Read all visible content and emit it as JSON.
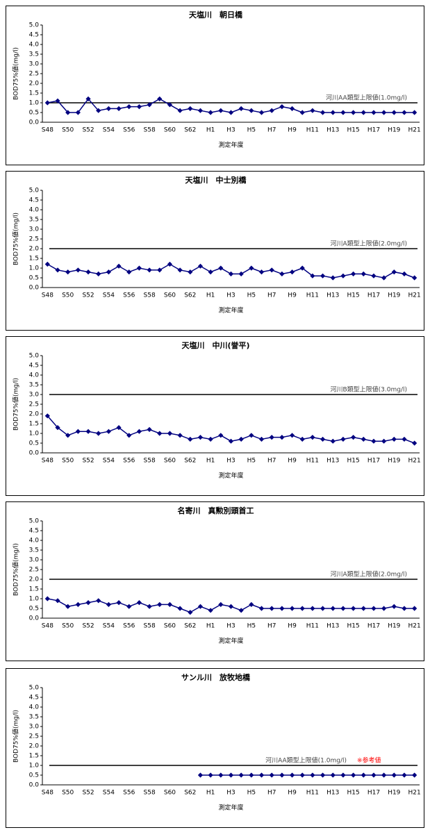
{
  "chart_data": [
    {
      "type": "line",
      "title": "天塩川　朝日橋",
      "y_label": "BOD75%値(mg/l)",
      "x_label": "測定年度",
      "categories": [
        "S48",
        null,
        "S50",
        null,
        "S52",
        null,
        "S54",
        null,
        "S56",
        null,
        "S58",
        null,
        "S60",
        null,
        "S62",
        null,
        "H1",
        null,
        "H3",
        null,
        "H5",
        null,
        "H7",
        null,
        "H9",
        null,
        "H11",
        null,
        "H13",
        null,
        "H15",
        null,
        "H17",
        null,
        "H19",
        null,
        "H21"
      ],
      "series": [
        {
          "color": "#000080",
          "values": [
            1.0,
            1.1,
            0.5,
            0.5,
            1.2,
            0.6,
            0.7,
            0.7,
            0.8,
            0.8,
            0.9,
            1.2,
            0.9,
            0.6,
            0.7,
            0.6,
            0.5,
            0.6,
            0.5,
            0.7,
            0.6,
            0.5,
            0.6,
            0.8,
            0.7,
            0.5,
            0.6,
            0.5,
            0.5,
            0.5,
            0.5,
            0.5,
            0.5,
            0.5,
            0.5,
            0.5,
            0.5
          ]
        }
      ],
      "reference_line": {
        "value": 1.0,
        "label": "河川AA類型上限値(1.0mg/l)"
      },
      "ylim": [
        0,
        5
      ],
      "yticks": [
        {
          "value": 0,
          "label": "0.0"
        },
        0.5,
        {
          "value": 1,
          "label": "1.0"
        },
        1.5,
        {
          "value": 2,
          "label": "2.0"
        },
        2.5,
        {
          "value": 3,
          "label": "3.0"
        },
        3.5,
        {
          "value": 4,
          "label": "4.0"
        },
        4.5,
        {
          "value": 5,
          "label": "5.0"
        }
      ]
    },
    {
      "type": "line",
      "title": "天塩川　中士別橋",
      "y_label": "BOD75%値(mg/l)",
      "x_label": "測定年度",
      "categories": [
        "S48",
        null,
        "S50",
        null,
        "S52",
        null,
        "S54",
        null,
        "S56",
        null,
        "S58",
        null,
        "S60",
        null,
        "S62",
        null,
        "H1",
        null,
        "H3",
        null,
        "H5",
        null,
        "H7",
        null,
        "H9",
        null,
        "H11",
        null,
        "H13",
        null,
        "H15",
        null,
        "H17",
        null,
        "H19",
        null,
        "H21"
      ],
      "series": [
        {
          "color": "#000080",
          "values": [
            1.2,
            0.9,
            0.8,
            0.9,
            0.8,
            0.7,
            0.8,
            1.1,
            0.8,
            1.0,
            0.9,
            0.9,
            1.2,
            0.9,
            0.8,
            1.1,
            0.8,
            1.0,
            0.7,
            0.7,
            1.0,
            0.8,
            0.9,
            0.7,
            0.8,
            1.0,
            0.6,
            0.6,
            0.5,
            0.6,
            0.7,
            0.7,
            0.6,
            0.5,
            0.8,
            0.7,
            0.5
          ]
        }
      ],
      "reference_line": {
        "value": 2.0,
        "label": "河川A類型上限値(2.0mg/l)"
      },
      "ylim": [
        0,
        5
      ],
      "yticks": [
        {
          "value": 0,
          "label": "0.0"
        },
        0.5,
        {
          "value": 1,
          "label": "1.0"
        },
        1.5,
        {
          "value": 2,
          "label": "2.0"
        },
        2.5,
        {
          "value": 3,
          "label": "3.0"
        },
        3.5,
        {
          "value": 4,
          "label": "4.0"
        },
        4.5,
        {
          "value": 5,
          "label": "5.0"
        }
      ]
    },
    {
      "type": "line",
      "title": "天塩川　中川(誉平)",
      "y_label": "BOD75%値(mg/l)",
      "x_label": "測定年度",
      "categories": [
        "S48",
        null,
        "S50",
        null,
        "S52",
        null,
        "S54",
        null,
        "S56",
        null,
        "S58",
        null,
        "S60",
        null,
        "S62",
        null,
        "H1",
        null,
        "H3",
        null,
        "H5",
        null,
        "H7",
        null,
        "H9",
        null,
        "H11",
        null,
        "H13",
        null,
        "H15",
        null,
        "H17",
        null,
        "H19",
        null,
        "H21"
      ],
      "series": [
        {
          "color": "#000080",
          "values": [
            1.9,
            1.3,
            0.9,
            1.1,
            1.1,
            1.0,
            1.1,
            1.3,
            0.9,
            1.1,
            1.2,
            1.0,
            1.0,
            0.9,
            0.7,
            0.8,
            0.7,
            0.9,
            0.6,
            0.7,
            0.9,
            0.7,
            0.8,
            0.8,
            0.9,
            0.7,
            0.8,
            0.7,
            0.6,
            0.7,
            0.8,
            0.7,
            0.6,
            0.6,
            0.7,
            0.7,
            0.5
          ]
        }
      ],
      "reference_line": {
        "value": 3.0,
        "label": "河川B類型上限値(3.0mg/l)"
      },
      "ylim": [
        0,
        5
      ],
      "yticks": [
        {
          "value": 0,
          "label": "0.0"
        },
        0.5,
        {
          "value": 1,
          "label": "1.0"
        },
        1.5,
        {
          "value": 2,
          "label": "2.0"
        },
        2.5,
        {
          "value": 3,
          "label": "3.0"
        },
        3.5,
        {
          "value": 4,
          "label": "4.0"
        },
        4.5,
        {
          "value": 5,
          "label": "5.0"
        }
      ]
    },
    {
      "type": "line",
      "title": "名寄川　真勲別頭首工",
      "y_label": "BOD75%値(mg/l)",
      "x_label": "測定年度",
      "categories": [
        "S48",
        null,
        "S50",
        null,
        "S52",
        null,
        "S54",
        null,
        "S56",
        null,
        "S58",
        null,
        "S60",
        null,
        "S62",
        null,
        "H1",
        null,
        "H3",
        null,
        "H5",
        null,
        "H7",
        null,
        "H9",
        null,
        "H11",
        null,
        "H13",
        null,
        "H15",
        null,
        "H17",
        null,
        "H19",
        null,
        "H21"
      ],
      "series": [
        {
          "color": "#000080",
          "values": [
            1.0,
            0.9,
            0.6,
            0.7,
            0.8,
            0.9,
            0.7,
            0.8,
            0.6,
            0.8,
            0.6,
            0.7,
            0.7,
            0.5,
            0.3,
            0.6,
            0.4,
            0.7,
            0.6,
            0.4,
            0.7,
            0.5,
            0.5,
            0.5,
            0.5,
            0.5,
            0.5,
            0.5,
            0.5,
            0.5,
            0.5,
            0.5,
            0.5,
            0.5,
            0.6,
            0.5,
            0.5
          ]
        }
      ],
      "reference_line": {
        "value": 2.0,
        "label": "河川A類型上限値(2.0mg/l)"
      },
      "ylim": [
        0,
        5
      ],
      "yticks": [
        {
          "value": 0,
          "label": "0.0"
        },
        0.5,
        {
          "value": 1,
          "label": "1.0"
        },
        1.5,
        {
          "value": 2,
          "label": "2.0"
        },
        2.5,
        {
          "value": 3,
          "label": "3.0"
        },
        3.5,
        {
          "value": 4,
          "label": "4.0"
        },
        4.5,
        {
          "value": 5,
          "label": "5.0"
        }
      ]
    },
    {
      "type": "line",
      "title": "サンル川　放牧地橋",
      "y_label": "BOD75%値(mg/l)",
      "x_label": "測定年度",
      "categories": [
        "S48",
        null,
        "S50",
        null,
        "S52",
        null,
        "S54",
        null,
        "S56",
        null,
        "S58",
        null,
        "S60",
        null,
        "S62",
        null,
        "H1",
        null,
        "H3",
        null,
        "H5",
        null,
        "H7",
        null,
        "H9",
        null,
        "H11",
        null,
        "H13",
        null,
        "H15",
        null,
        "H17",
        null,
        "H19",
        null,
        "H21"
      ],
      "series": [
        {
          "color": "#000080",
          "values": [
            null,
            null,
            null,
            null,
            null,
            null,
            null,
            null,
            null,
            null,
            null,
            null,
            null,
            null,
            null,
            0.5,
            0.5,
            0.5,
            0.5,
            0.5,
            0.5,
            0.5,
            0.5,
            0.5,
            0.5,
            0.5,
            0.5,
            0.5,
            0.5,
            0.5,
            0.5,
            0.5,
            0.5,
            0.5,
            0.5,
            0.5,
            0.5
          ]
        }
      ],
      "reference_line": {
        "value": 1.0,
        "label": "河川AA類型上限値(1.0mg/l)"
      },
      "annotation": "※参考値",
      "annotation_color": "#ff0000",
      "ylim": [
        0,
        5
      ],
      "yticks": [
        {
          "value": 0,
          "label": "0.0"
        },
        0.5,
        {
          "value": 1,
          "label": "1.0"
        },
        1.5,
        {
          "value": 2,
          "label": "2.0"
        },
        2.5,
        {
          "value": 3,
          "label": "3.0"
        },
        3.5,
        {
          "value": 4,
          "label": "4.0"
        },
        4.5,
        {
          "value": 5,
          "label": "5.0"
        }
      ]
    }
  ]
}
